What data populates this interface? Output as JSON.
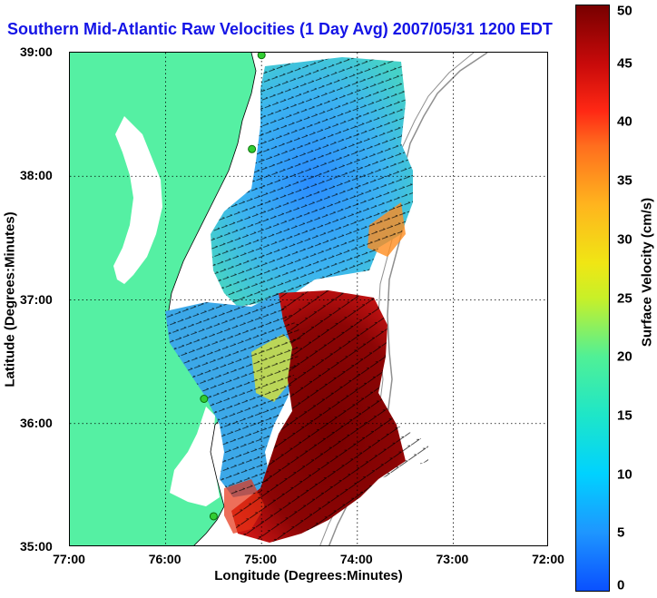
{
  "title": "Southern Mid-Atlantic Raw Velocities (1 Day Avg) 2007/05/31 1200 EDT",
  "xlabel": "Longitude (Degrees:Minutes)",
  "ylabel": "Latitude (Degrees:Minutes)",
  "x_ticks": [
    "77:00",
    "76:00",
    "75:00",
    "74:00",
    "73:00",
    "72:00"
  ],
  "y_ticks": [
    "39:00",
    "38:00",
    "37:00",
    "36:00",
    "35:00"
  ],
  "colorbar": {
    "label": "Surface Velocity (cm/s)",
    "ticks": [
      "0",
      "5",
      "10",
      "15",
      "20",
      "25",
      "30",
      "35",
      "40",
      "45",
      "50"
    ],
    "range": [
      0,
      50
    ]
  },
  "colors": {
    "land": "#55f0a3",
    "title": "#1414e6",
    "bathymetry": "#909090",
    "station": "#32cd32"
  },
  "map_extent": {
    "lon": [
      -77,
      -72
    ],
    "lat": [
      35,
      39
    ]
  },
  "stations": [
    {
      "lon": -75.0,
      "lat": 38.98
    },
    {
      "lon": -75.1,
      "lat": 38.22
    },
    {
      "lon": -75.6,
      "lat": 36.2
    },
    {
      "lon": -75.5,
      "lat": 35.25
    }
  ],
  "velocity_regions": [
    {
      "name": "northern-patch",
      "speed_cms": 10
    },
    {
      "name": "central-patch",
      "speed_cms": 10
    },
    {
      "name": "southeast-jet",
      "speed_cms": 50
    },
    {
      "name": "cape-hatteras-jet",
      "speed_cms": 50
    }
  ]
}
